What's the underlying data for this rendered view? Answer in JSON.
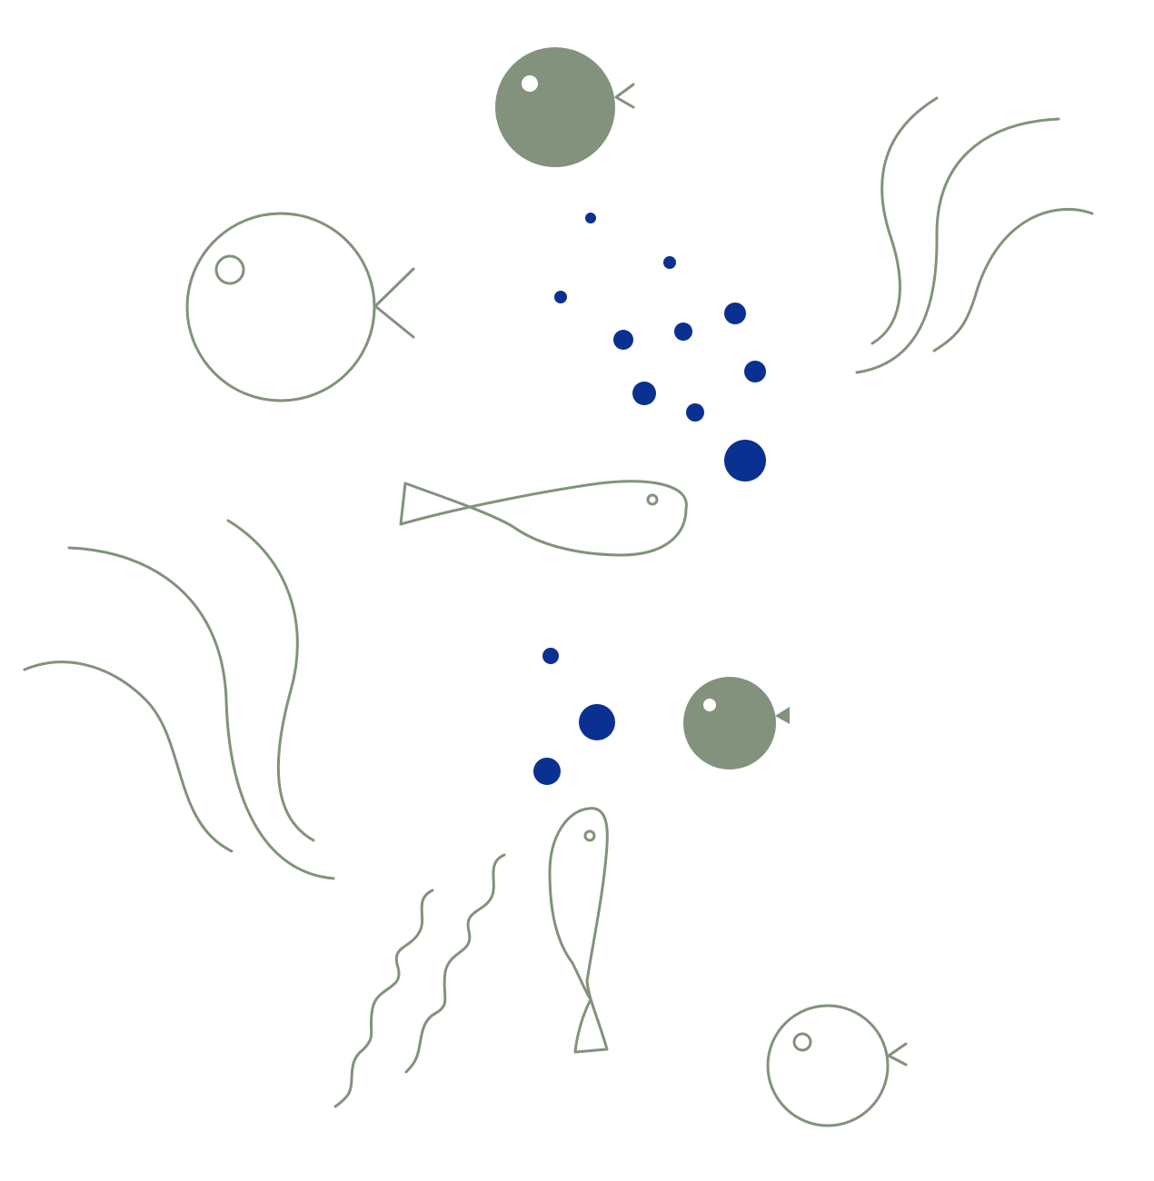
{
  "colors": {
    "background": "#ffffff",
    "line": "#82927c",
    "fill": "#82927c",
    "bubble": "#0a3191"
  },
  "elements": {
    "fish": [
      "round-fish-filled",
      "round-fish-outline",
      "long-fish-horizontal",
      "round-fish-filled-small",
      "long-fish-vertical",
      "round-fish-outline-small"
    ],
    "seaweed": [
      "seaweed-top-right",
      "seaweed-left",
      "seaweed-bottom-wavy"
    ],
    "bubble_groups": [
      "bubbles-upper",
      "bubbles-lower"
    ]
  }
}
